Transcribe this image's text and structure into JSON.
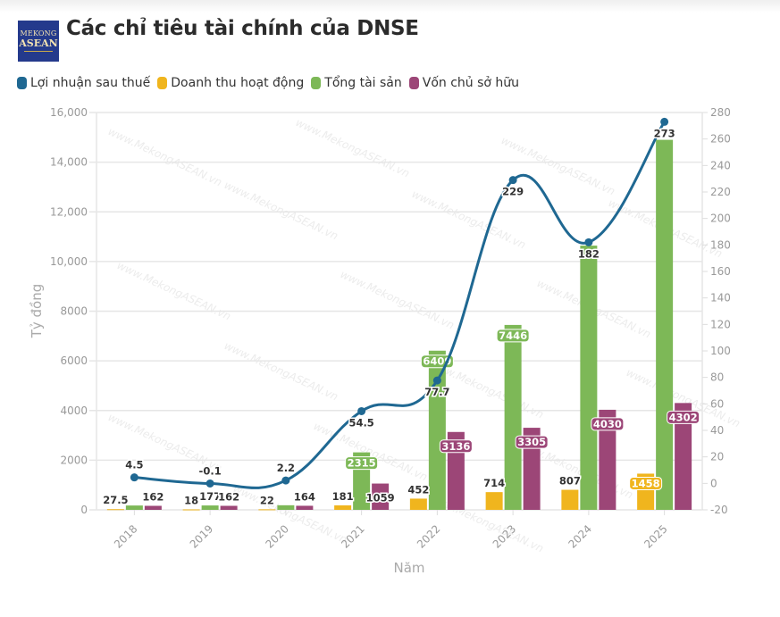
{
  "header": {
    "logo_line1": "MEKONG",
    "logo_line2": "ASEAN",
    "title": "Các chỉ tiêu tài chính của DNSE"
  },
  "watermark": "www.MekongASEAN.vn",
  "chart_data": {
    "type": "bar+line",
    "title": "Các chỉ tiêu tài chính của DNSE",
    "xlabel": "Năm",
    "ylabel": "Tỷ đồng",
    "categories": [
      "2018",
      "2019",
      "2020",
      "2021",
      "2022",
      "2023",
      "2024",
      "2025"
    ],
    "y_left": {
      "min": 0,
      "max": 16000,
      "ticks": [
        0,
        2000,
        4000,
        6000,
        8000,
        10000,
        12000,
        14000,
        16000
      ],
      "tick_labels": [
        "0",
        "2000",
        "4000",
        "6000",
        "8000",
        "10,000",
        "12,000",
        "14,000",
        "16,000"
      ]
    },
    "y_right": {
      "min": -20,
      "max": 280,
      "ticks": [
        -20,
        0,
        20,
        40,
        60,
        80,
        100,
        120,
        140,
        160,
        180,
        200,
        220,
        240,
        260,
        280
      ]
    },
    "grid": true,
    "legend_position": "top-left",
    "series": [
      {
        "name": "Lợi nhuận sau thuế",
        "type": "line",
        "axis": "right",
        "color": "#1f6892",
        "values": [
          4.5,
          -0.1,
          2.2,
          54.5,
          77.7,
          229,
          182,
          273
        ],
        "labels": [
          "4.5",
          "-0.1",
          "2.2",
          "54.5",
          "77.7",
          "229",
          "182",
          "273"
        ]
      },
      {
        "name": "Doanh thu hoạt động",
        "type": "bar",
        "axis": "left",
        "color": "#f0b51e",
        "values": [
          27.5,
          18,
          22,
          181,
          452,
          714,
          807,
          1458
        ],
        "labels": [
          "27.5",
          "18",
          "22",
          "181",
          "452",
          "714",
          "807",
          "1458"
        ]
      },
      {
        "name": "Tổng tài sản",
        "type": "bar",
        "axis": "left",
        "color": "#7db857",
        "values": [
          175,
          177,
          185,
          2315,
          6409,
          7446,
          10640,
          14900
        ],
        "labels": [
          "",
          "177",
          "",
          "2315",
          "6409",
          "7446",
          "",
          ""
        ]
      },
      {
        "name": "Vốn chủ sở hữu",
        "type": "bar",
        "axis": "left",
        "color": "#9c4677",
        "values": [
          162,
          162,
          164,
          1059,
          3136,
          3305,
          4030,
          4302
        ],
        "labels": [
          "162",
          "162",
          "164",
          "1059",
          "3136",
          "3305",
          "4030",
          "4302"
        ]
      }
    ]
  }
}
